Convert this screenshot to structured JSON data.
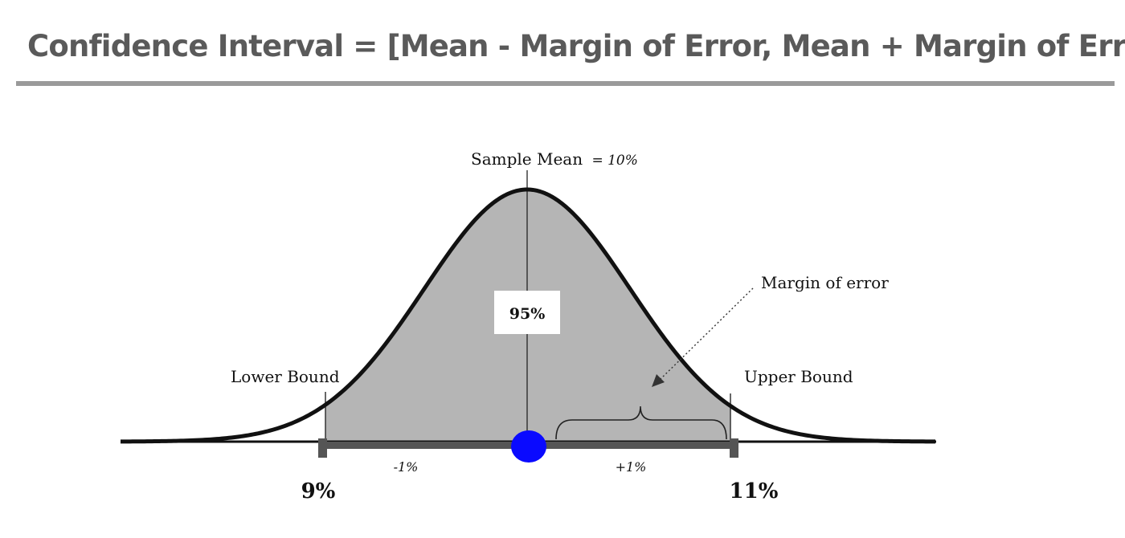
{
  "title": "Confidence Interval = [Mean - Margin of Error, Mean + Margin of Error]",
  "diagram": {
    "mean_label": "Sample Mean",
    "mean_value": "= 10%",
    "confidence": "95%",
    "lower_bound_label": "Lower Bound",
    "upper_bound_label": "Upper Bound",
    "margin_label": "Margin of error",
    "minus_label": "-1%",
    "plus_label": "+1%",
    "lower_value": "9%",
    "upper_value": "11%"
  },
  "colors": {
    "curve": "#111111",
    "fill": "#b5b5b5",
    "mean_dot": "#0a0aff",
    "interval_bar": "#555555",
    "title": "#5a5a5a"
  }
}
